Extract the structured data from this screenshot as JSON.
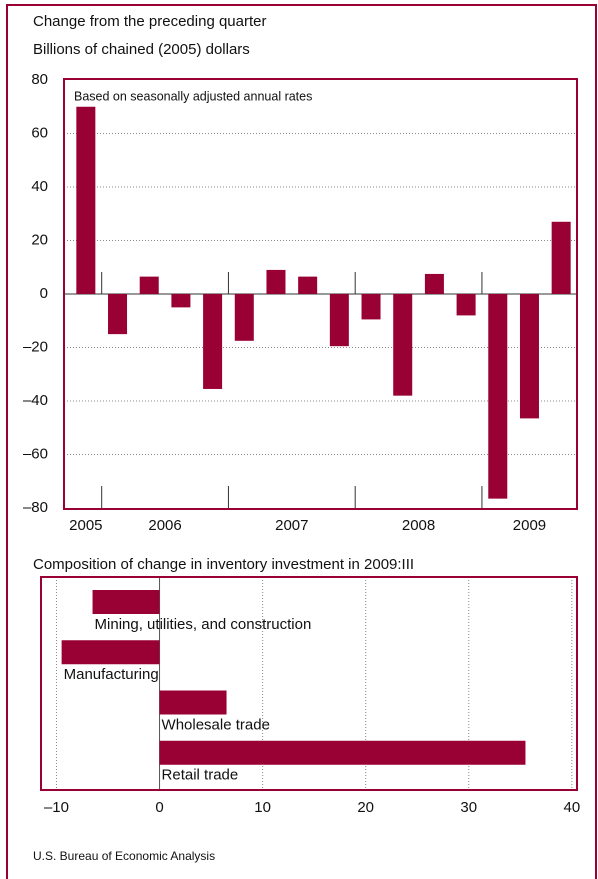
{
  "chart_data": [
    {
      "type": "bar",
      "title": "Change from the preceding quarter",
      "subtitle": "Billions of chained (2005) dollars",
      "annotation": "Based on seasonally adjusted annual rates",
      "categories": [
        "2005",
        "2006",
        null,
        null,
        null,
        "2007",
        null,
        null,
        null,
        "2008",
        null,
        null,
        null,
        "2009",
        null,
        null
      ],
      "values": [
        70,
        -15,
        6.5,
        -5,
        -35.5,
        -17.5,
        9,
        6.5,
        -19.5,
        -9.5,
        -38,
        7.5,
        -8,
        -76.5,
        -46.5,
        27
      ],
      "color": "#990033",
      "ylim": [
        -80,
        80
      ],
      "yticks": [
        {
          "value": -80,
          "label": "–80"
        },
        {
          "value": -60,
          "label": "–60"
        },
        {
          "value": -40,
          "label": "–40"
        },
        {
          "value": -20,
          "label": "–20"
        },
        0,
        20,
        40,
        60,
        80
      ],
      "grid": true
    },
    {
      "type": "hbar",
      "title": "Composition of change in inventory investment in 2009:III",
      "categories": [
        "Mining, utilities, and construction",
        "Manufacturing",
        "Wholesale trade",
        "Retail trade"
      ],
      "values": [
        -6.5,
        -9.5,
        6.5,
        35.5
      ],
      "color": "#990033",
      "xlim": [
        -11.5,
        40.5
      ],
      "xticks": [
        {
          "value": -10,
          "label": "–10"
        },
        0,
        10,
        20,
        30,
        40
      ],
      "grid": true
    },
    {
      "type": "note",
      "source": "U.S. Bureau of Economic Analysis"
    }
  ]
}
